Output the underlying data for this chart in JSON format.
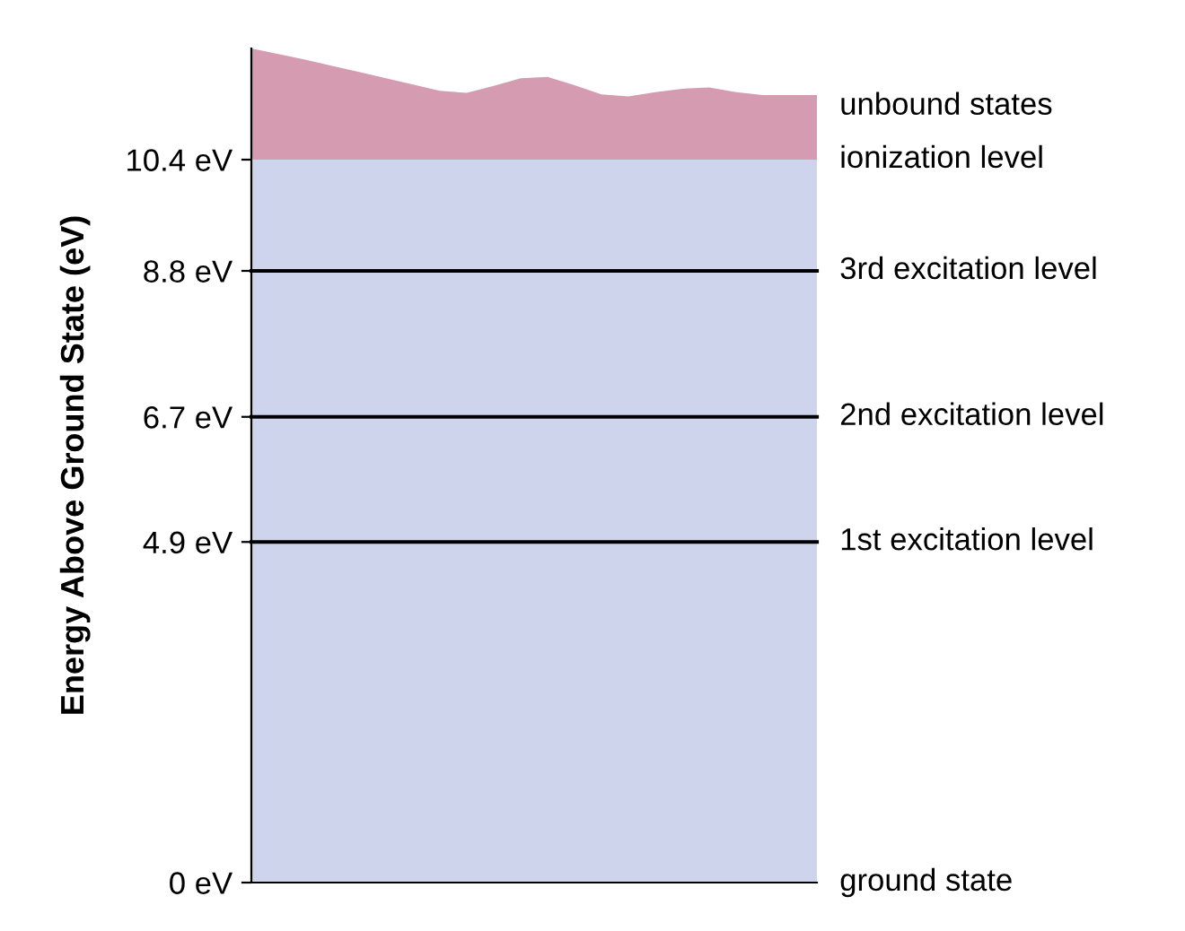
{
  "chart_data": {
    "type": "area",
    "stacked": true,
    "ylabel": "Energy Above Ground State (eV)",
    "categories": [
      null,
      null,
      null,
      null,
      null,
      null,
      null,
      null,
      null,
      null,
      null,
      null,
      null,
      null,
      null,
      null,
      null,
      null,
      null,
      null,
      null,
      null
    ],
    "series": [
      {
        "color": "#cdd4ec",
        "values": [
          10.4,
          10.4,
          10.4,
          10.4,
          10.4,
          10.4,
          10.4,
          10.4,
          10.4,
          10.4,
          10.4,
          10.4,
          10.4,
          10.4,
          10.4,
          10.4,
          10.4,
          10.4,
          10.4,
          10.4,
          10.4,
          10.4
        ]
      },
      {
        "color": "#d59bb0",
        "values": [
          1.6,
          1.52,
          1.44,
          1.35,
          1.26,
          1.17,
          1.08,
          0.99,
          0.96,
          1.06,
          1.17,
          1.19,
          1.07,
          0.94,
          0.91,
          0.97,
          1.02,
          1.04,
          0.97,
          0.93,
          0.93,
          0.93
        ]
      }
    ],
    "annotations": [
      "unbound states",
      "ionization level",
      "ground state"
    ],
    "ref_lines": [
      {
        "axis": "y",
        "value": 8.8,
        "label": "3rd excitation level",
        "color": "#000000"
      },
      {
        "axis": "y",
        "value": 6.7,
        "label": "2nd excitation level",
        "color": "#000000"
      },
      {
        "axis": "y",
        "value": 4.9,
        "label": "1st excitation level",
        "color": "#000000"
      }
    ],
    "ylim": [
      0,
      12
    ],
    "yticks": [
      {
        "value": 0,
        "label": "0 eV"
      },
      {
        "value": 4.9,
        "label": "4.9 eV"
      },
      {
        "value": 6.7,
        "label": "6.7 eV"
      },
      {
        "value": 8.8,
        "label": "8.8 eV"
      },
      {
        "value": 10.4,
        "label": "10.4 eV"
      }
    ],
    "tick_labels": "y"
  }
}
